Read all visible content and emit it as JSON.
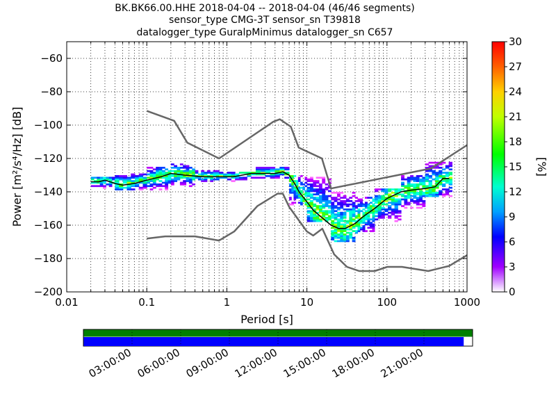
{
  "chart_data": {
    "type": "heatmap",
    "title_lines": [
      "BK.BK66.00.HHE   2018-04-04 -- 2018-04-04  (46/46 segments)",
      "sensor_type CMG-3T sensor_sn T39818",
      "datalogger_type GuralpMinimus datalogger_sn C657"
    ],
    "xlabel": "Period [s]",
    "ylabel": "Power [m²/s⁴/Hz] [dB]",
    "x_scale": "log",
    "xlim": [
      0.01,
      1000
    ],
    "ylim": [
      -200,
      -50
    ],
    "x_ticks": [
      0.01,
      0.1,
      1,
      10,
      100,
      1000
    ],
    "x_tick_labels": [
      "0.01",
      "0.1",
      "1",
      "10",
      "100",
      "1000"
    ],
    "y_ticks": [
      -200,
      -180,
      -160,
      -140,
      -120,
      -100,
      -80,
      -60
    ],
    "y_tick_labels": [
      "−200",
      "−180",
      "−160",
      "−140",
      "−120",
      "−100",
      "−80",
      "−60"
    ],
    "grid": "dotted",
    "colorbar": {
      "label": "[%]",
      "min": 0,
      "max": 30,
      "ticks": [
        0,
        3,
        6,
        9,
        12,
        15,
        18,
        21,
        24,
        27,
        30
      ],
      "tick_labels": [
        "0",
        "3",
        "6",
        "9",
        "12",
        "15",
        "18",
        "21",
        "24",
        "27",
        "30"
      ]
    },
    "series": [
      {
        "role": "high-noise-model",
        "color": "#666666",
        "x": [
          0.1,
          0.22,
          0.32,
          0.8,
          3.8,
          4.6,
          6.3,
          7.9,
          15.4,
          20,
          354.8,
          1000
        ],
        "y": [
          -91.5,
          -97.4,
          -110.5,
          -120,
          -98,
          -96.5,
          -101,
          -113.5,
          -120,
          -138,
          -126,
          -112
        ]
      },
      {
        "role": "low-noise-model",
        "color": "#666666",
        "x": [
          0.1,
          0.17,
          0.4,
          0.8,
          1.24,
          2.4,
          4.3,
          5,
          6,
          10,
          12,
          15.6,
          21.9,
          31.6,
          45,
          70,
          101,
          154,
          328,
          600,
          1000
        ],
        "y": [
          -168,
          -166.7,
          -166.7,
          -169.2,
          -163.7,
          -148.6,
          -141.1,
          -141.1,
          -149,
          -163.8,
          -166.2,
          -162.1,
          -177.5,
          -185,
          -187.5,
          -187.5,
          -185,
          -185,
          -187.5,
          -184.4,
          -178
        ]
      },
      {
        "role": "mode",
        "color": "#000000",
        "x": [
          0.02,
          0.025,
          0.03,
          0.04,
          0.05,
          0.07,
          0.1,
          0.15,
          0.2,
          0.3,
          0.5,
          0.8,
          1.2,
          2,
          3,
          4,
          5,
          6,
          7,
          8,
          10,
          12,
          15,
          20,
          25,
          30,
          40,
          50,
          70,
          100,
          150,
          200,
          300,
          400,
          500,
          600
        ],
        "y": [
          -134,
          -134,
          -133,
          -135,
          -136,
          -135,
          -133,
          -131,
          -129,
          -130,
          -131,
          -131,
          -131,
          -129,
          -129,
          -129,
          -128,
          -130,
          -135,
          -140,
          -146,
          -151,
          -155,
          -160,
          -162,
          -162,
          -159,
          -155,
          -150,
          -144,
          -140,
          -139,
          -138,
          -137,
          -132,
          -132
        ]
      }
    ],
    "psd_density": [
      {
        "x": [
          0.02,
          0.04
        ],
        "y": [
          -138,
          -131
        ]
      },
      {
        "x": [
          0.04,
          0.1
        ],
        "y": [
          -139,
          -129
        ]
      },
      {
        "x": [
          0.1,
          0.2
        ],
        "y": [
          -139,
          -125
        ]
      },
      {
        "x": [
          0.2,
          0.4
        ],
        "y": [
          -137,
          -123
        ]
      },
      {
        "x": [
          0.4,
          0.8
        ],
        "y": [
          -134,
          -127
        ]
      },
      {
        "x": [
          0.8,
          2
        ],
        "y": [
          -134,
          -128
        ]
      },
      {
        "x": [
          2,
          6
        ],
        "y": [
          -132,
          -125
        ]
      },
      {
        "x": [
          6,
          10
        ],
        "y": [
          -148,
          -130
        ]
      },
      {
        "x": [
          10,
          20
        ],
        "y": [
          -158,
          -131
        ]
      },
      {
        "x": [
          20,
          40
        ],
        "y": [
          -170,
          -140
        ]
      },
      {
        "x": [
          40,
          70
        ],
        "y": [
          -165,
          -143
        ]
      },
      {
        "x": [
          70,
          150
        ],
        "y": [
          -158,
          -138
        ]
      },
      {
        "x": [
          150,
          300
        ],
        "y": [
          -150,
          -130
        ]
      },
      {
        "x": [
          300,
          650
        ],
        "y": [
          -143,
          -122
        ]
      }
    ],
    "coverage": {
      "time_labels": [
        "03:00:00",
        "06:00:00",
        "09:00:00",
        "12:00:00",
        "15:00:00",
        "18:00:00",
        "21:00:00"
      ],
      "bars": [
        {
          "color": "#008000",
          "fraction": 1.0
        },
        {
          "color": "#0000ff",
          "fraction": 0.978
        }
      ]
    }
  }
}
